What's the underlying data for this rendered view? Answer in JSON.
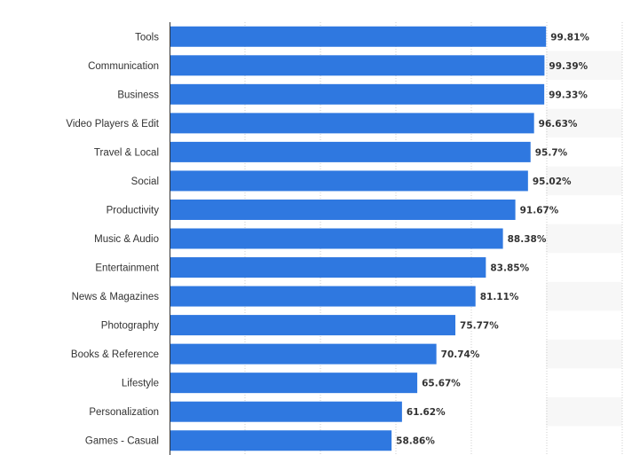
{
  "chart_data": {
    "type": "bar",
    "orientation": "horizontal",
    "categories": [
      "Tools",
      "Communication",
      "Business",
      "Video Players & Edit",
      "Travel & Local",
      "Social",
      "Productivity",
      "Music & Audio",
      "Entertainment",
      "News & Magazines",
      "Photography",
      "Books & Reference",
      "Lifestyle",
      "Personalization",
      "Games - Casual"
    ],
    "values": [
      99.81,
      99.39,
      99.33,
      96.63,
      95.7,
      95.02,
      91.67,
      88.38,
      83.85,
      81.11,
      75.77,
      70.74,
      65.67,
      61.62,
      58.86
    ],
    "value_labels": [
      "99.81%",
      "99.39%",
      "99.33%",
      "96.63%",
      "95.7%",
      "95.02%",
      "91.67%",
      "88.38%",
      "83.85%",
      "81.11%",
      "75.77%",
      "70.74%",
      "65.67%",
      "61.62%",
      "58.86%"
    ],
    "title": "",
    "xlabel": "",
    "ylabel": "",
    "xlim": [
      0,
      120
    ],
    "grid": true,
    "legend": "none",
    "colors": {
      "bar": "#2f78e0",
      "alt_row": "#f7f7f7",
      "grid": "#cccccc",
      "axis": "#333333"
    }
  }
}
